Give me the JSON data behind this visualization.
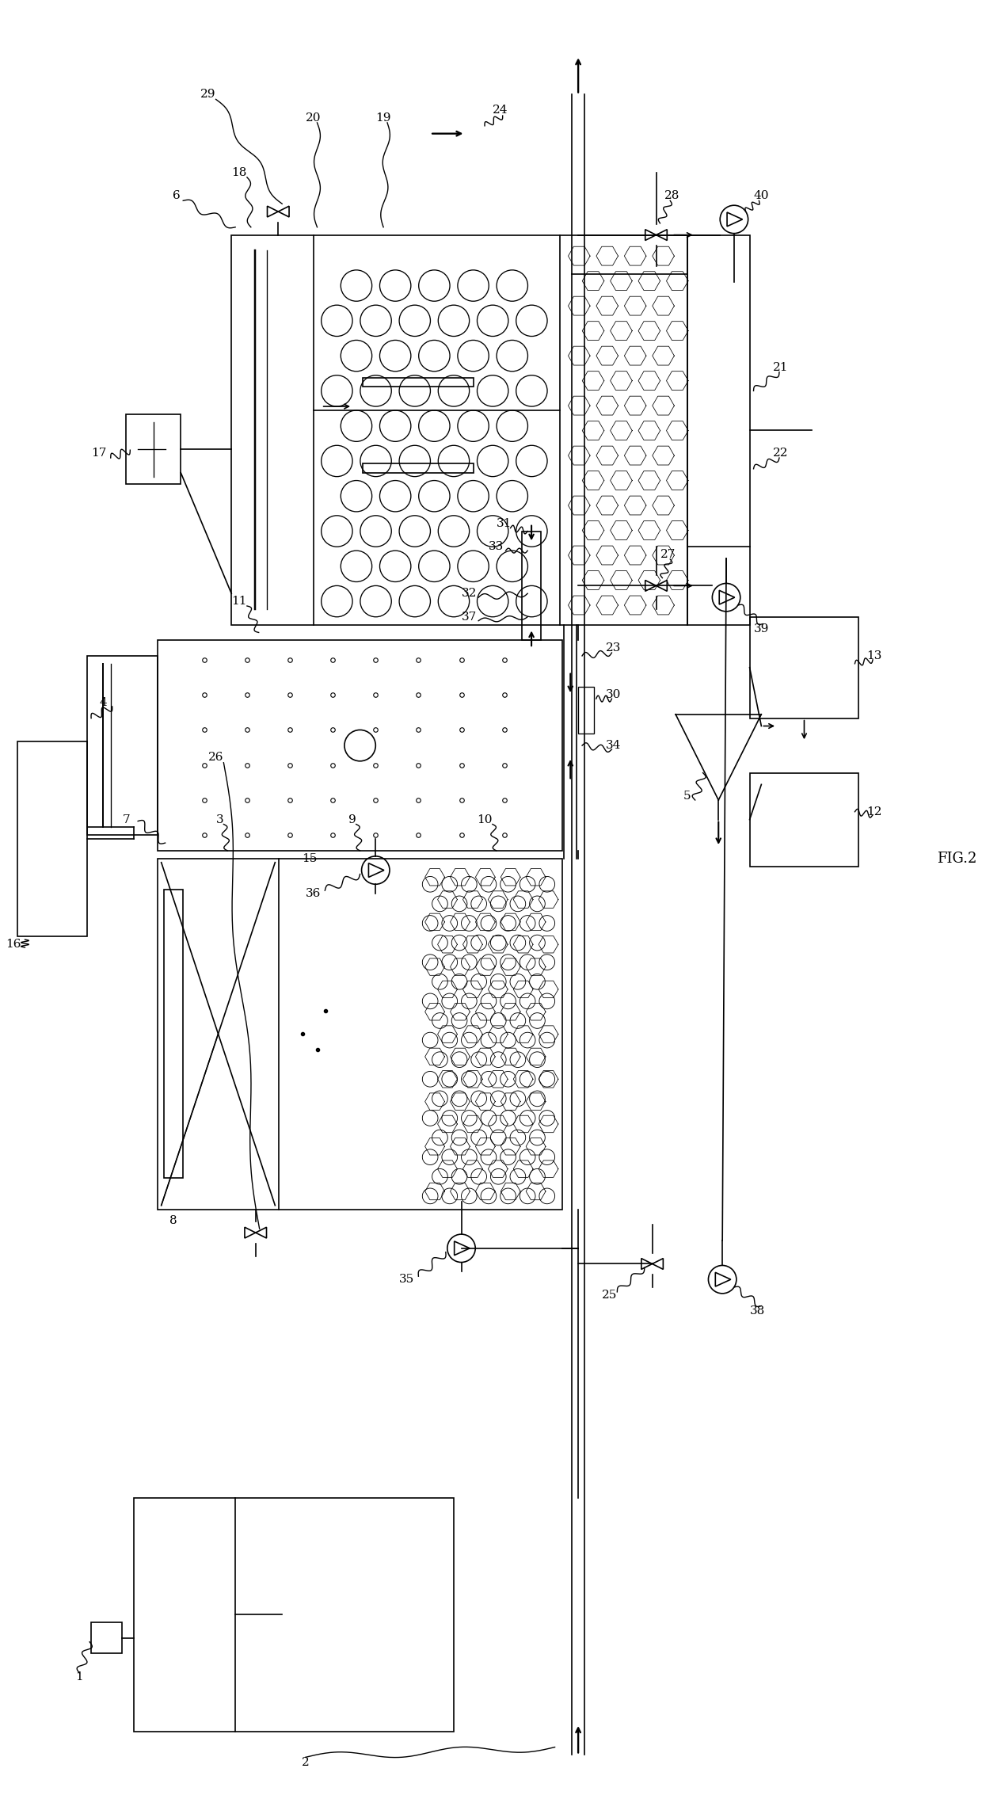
{
  "fig_label": "FIG.2",
  "background_color": "#ffffff",
  "line_color": "#000000",
  "line_width": 1.2,
  "fig_width": 12.4,
  "fig_height": 22.66
}
